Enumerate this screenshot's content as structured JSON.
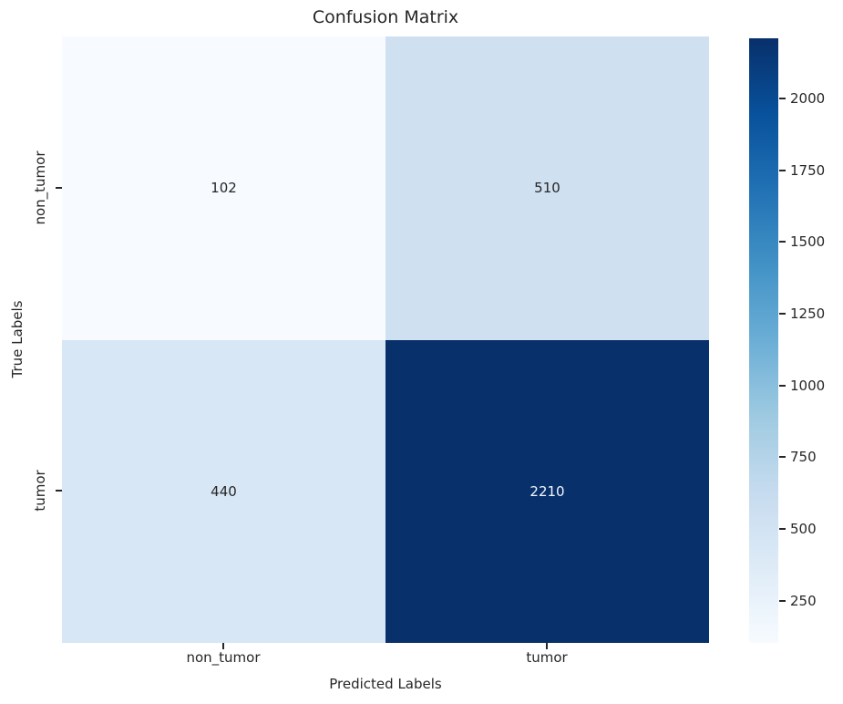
{
  "chart_data": {
    "type": "heatmap",
    "title": "Confusion Matrix",
    "xlabel": "Predicted Labels",
    "ylabel": "True Labels",
    "x_categories": [
      "non_tumor",
      "tumor"
    ],
    "y_categories": [
      "non_tumor",
      "tumor"
    ],
    "values": [
      [
        102,
        510
      ],
      [
        440,
        2210
      ]
    ],
    "vmin": 102,
    "vmax": 2210,
    "colormap": "Blues",
    "colorbar_ticks": [
      250,
      500,
      750,
      1000,
      1250,
      1500,
      1750,
      2000
    ],
    "cell_colors": [
      [
        "#f7fbff",
        "#cfe0f1"
      ],
      [
        "#d8e7f5",
        "#08306b"
      ]
    ],
    "cell_text_colors": [
      [
        "#262626",
        "#262626"
      ],
      [
        "#262626",
        "#f2f7fc"
      ]
    ],
    "colormap_stops": [
      "#f7fbff",
      "#deebf7",
      "#c6dbef",
      "#9ecae1",
      "#6baed6",
      "#4292c6",
      "#2171b5",
      "#08519c",
      "#08306b"
    ],
    "legend_position": "right",
    "grid": false
  },
  "colors": {
    "text": "#262626",
    "background": "#ffffff",
    "max_cell": "#08306b",
    "min_cell": "#f7fbff"
  }
}
